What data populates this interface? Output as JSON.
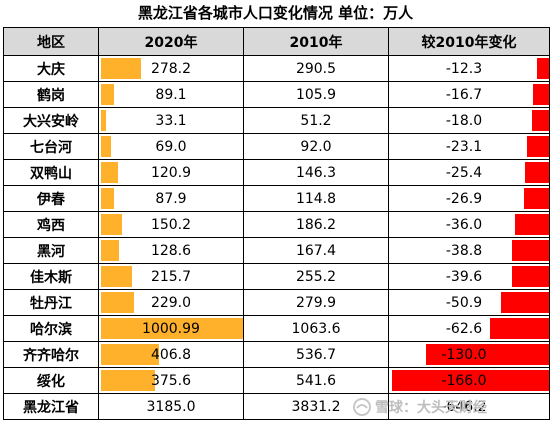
{
  "title": "黑龙江省各城市人口变化情况  单位：万人",
  "columns": [
    "地区",
    "2020年",
    "2010年",
    "较2010年变化"
  ],
  "rows": [
    {
      "region": "大庆",
      "y2020": "278.2",
      "y2010": "290.5",
      "change": "-12.3"
    },
    {
      "region": "鹤岗",
      "y2020": "89.1",
      "y2010": "105.9",
      "change": "-16.7"
    },
    {
      "region": "大兴安岭",
      "y2020": "33.1",
      "y2010": "51.2",
      "change": "-18.0"
    },
    {
      "region": "七台河",
      "y2020": "69.0",
      "y2010": "92.0",
      "change": "-23.1"
    },
    {
      "region": "双鸭山",
      "y2020": "120.9",
      "y2010": "146.3",
      "change": "-25.4"
    },
    {
      "region": "伊春",
      "y2020": "87.9",
      "y2010": "114.8",
      "change": "-26.9"
    },
    {
      "region": "鸡西",
      "y2020": "150.2",
      "y2010": "186.2",
      "change": "-36.0"
    },
    {
      "region": "黑河",
      "y2020": "128.6",
      "y2010": "167.4",
      "change": "-38.8"
    },
    {
      "region": "佳木斯",
      "y2020": "215.7",
      "y2010": "255.2",
      "change": "-39.6"
    },
    {
      "region": "牡丹江",
      "y2020": "229.0",
      "y2010": "279.9",
      "change": "-50.9"
    },
    {
      "region": "哈尔滨",
      "y2020": "1000.99",
      "y2010": "1063.6",
      "change": "-62.6"
    },
    {
      "region": "齐齐哈尔",
      "y2020": "406.8",
      "y2010": "536.7",
      "change": "-130.0"
    },
    {
      "region": "绥化",
      "y2020": "375.6",
      "y2010": "541.6",
      "change": "-166.0"
    }
  ],
  "total": {
    "region": "黑龙江省",
    "y2020": "3185.0",
    "y2010": "3831.2",
    "change": "-646.2"
  },
  "colors": {
    "positive_bar": "#ffb12b",
    "negative_bar": "#ff0000",
    "header_bg": "#d9d9d9"
  },
  "watermark": {
    "text": "雪球：大头天财经",
    "icon": "snowball-logo-icon"
  },
  "chart_data": {
    "type": "table",
    "title": "黑龙江省各城市人口变化情况  单位：万人",
    "columns": [
      "地区",
      "2020年",
      "2010年",
      "较2010年变化"
    ],
    "categories": [
      "大庆",
      "鹤岗",
      "大兴安岭",
      "七台河",
      "双鸭山",
      "伊春",
      "鸡西",
      "黑河",
      "佳木斯",
      "牡丹江",
      "哈尔滨",
      "齐齐哈尔",
      "绥化"
    ],
    "series": [
      {
        "name": "2020年",
        "values": [
          278.2,
          89.1,
          33.1,
          69.0,
          120.9,
          87.9,
          150.2,
          128.6,
          215.7,
          229.0,
          1000.99,
          406.8,
          375.6
        ]
      },
      {
        "name": "2010年",
        "values": [
          290.5,
          105.9,
          51.2,
          92.0,
          146.3,
          114.8,
          186.2,
          167.4,
          255.2,
          279.9,
          1063.6,
          536.7,
          541.6
        ]
      },
      {
        "name": "较2010年变化",
        "values": [
          -12.3,
          -16.7,
          -18.0,
          -23.1,
          -25.4,
          -26.9,
          -36.0,
          -38.8,
          -39.6,
          -50.9,
          -62.6,
          -130.0,
          -166.0
        ]
      }
    ],
    "totals": {
      "地区": "黑龙江省",
      "2020年": 3185.0,
      "2010年": 3831.2,
      "较2010年变化": -646.2
    },
    "data_bars": {
      "2020年": {
        "max": 1000.99
      },
      "较2010年变化": {
        "max_abs": 166.0
      }
    }
  }
}
